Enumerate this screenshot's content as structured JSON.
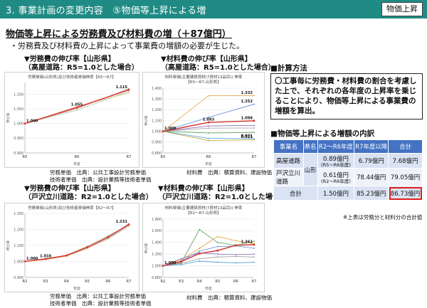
{
  "header": {
    "title": "3. 事業計画の変更内容　⑤物価等上昇による増",
    "badge": "物価上昇"
  },
  "subtitle": "物価等上昇による労務費及び材料費の増（＋87億円）",
  "lead": "・労務費及び材料費の上昇によって事業費の増額の必要が生じた。",
  "panels": {
    "tl": {
      "title1": "▼労務費の伸び率【山形県】",
      "title2": "（高屋道路：R5=1.0とした場合）",
      "source1": "労務単価　出典：公共工事設計労務単価",
      "source2": "技術者単価　出典：設計業務等技術者単価"
    },
    "tr": {
      "title1": "▼材料費の伸び率【山形県】",
      "title2": "（高屋道路：R5=1.0とした場合）",
      "source1": "材料費　出典：積算資料、建設物価"
    },
    "bl": {
      "title1": "▼労務費の伸び率【山形県】",
      "title2": "（戸沢立川道路：R2=1.0とした場合）",
      "source1": "労務単価　出典：公共工事設計労務単価",
      "source2": "技術者単価　出典：設計業務等技術者単価"
    },
    "br": {
      "title1": "▼材料費の伸び率【山形県】",
      "title2": "（戸沢立川道路：R2=1.0とした場合）",
      "source1": "材料費　出典：積算資料、建設物価"
    }
  },
  "method": {
    "heading": "■計算方法",
    "text": "〇工事毎に労務費・材料費の割合を考慮した上で、それぞれの各年度の上昇率を乗じることにより、物価等上昇による事業費の増額を算出。"
  },
  "breakdown": {
    "heading": "■物価等上昇による増額の内訳",
    "headers": [
      "事業名",
      "県名",
      "R2～R6年度",
      "R7年度以降",
      "合計"
    ],
    "rows": [
      {
        "name": "高屋道路",
        "period": "0.89億円",
        "period_note": "(R5～R6年度)",
        "later": "6.79億円",
        "total": "7.68億円"
      },
      {
        "name": "戸沢立川道路",
        "period": "0.61億円",
        "period_note": "(R2～R6年度)",
        "later": "78.44億円",
        "total": "79.05億円"
      }
    ],
    "prefecture": "山形",
    "total_row": {
      "name": "合計",
      "period": "1.50億円",
      "later": "85.23億円",
      "total": "86.73億円"
    },
    "footnote": "※上表は労務分と材料分の合計値"
  },
  "chart_data": [
    {
      "type": "line",
      "id": "labor-takaya",
      "title": "労務単価(山形県)及び技術者単価伸率【R5～R7】",
      "x": [
        "R5",
        "R6",
        "R7"
      ],
      "xlabel": "年度",
      "ylabel": "伸び率",
      "ylim": [
        0.9,
        1.14
      ],
      "yticks": [
        0.9,
        0.95,
        1.0,
        1.05,
        1.1
      ],
      "ytick_labels": [
        "0.900",
        "0.950",
        "1.000",
        "1.050",
        "1.100"
      ],
      "series": [
        {
          "name": "",
          "values": [
            1.0,
            1.051,
            1.119
          ],
          "color": "#c9a0a0"
        },
        {
          "name": "",
          "values": [
            1.0,
            1.054,
            1.117
          ],
          "color": "#a0aecf"
        },
        {
          "name": "",
          "values": [
            1.0,
            1.046,
            1.11
          ],
          "color": "#aac9a5"
        },
        {
          "name": "",
          "values": [
            1.0,
            1.058,
            1.105
          ],
          "color": "#d8c38a"
        },
        {
          "name": "",
          "values": [
            1.0,
            1.055,
            1.115
          ],
          "color": "#e0312a",
          "bold": true
        }
      ],
      "labels": [
        {
          "x": 0,
          "y": 1.0,
          "text": "1.000"
        },
        {
          "x": 1,
          "y": 1.055,
          "text": "1.055"
        },
        {
          "x": 2,
          "y": 1.115,
          "text": "1.115"
        }
      ]
    },
    {
      "type": "line",
      "id": "material-takaya",
      "title": "材料単価(主要建設資材(7資材13品目)) 伸率",
      "subtitle": "【R5～R7:山形県】",
      "x": [
        "R5",
        "R6",
        "R7"
      ],
      "xlabel": "年度",
      "ylabel": "伸び率",
      "ylim": [
        0.8,
        1.4
      ],
      "yticks": [
        0.8,
        0.9,
        1.0,
        1.1,
        1.2,
        1.3,
        1.4
      ],
      "ytick_labels": [
        "0.800",
        "0.900",
        "1.000",
        "1.100",
        "1.200",
        "1.300",
        "1.400"
      ],
      "series": [
        {
          "name": "",
          "values": [
            1.0,
            1.33,
            1.332
          ],
          "color": "#e2a23b"
        },
        {
          "name": "",
          "values": [
            1.0,
            1.13,
            1.252
          ],
          "color": "#5b8bd0"
        },
        {
          "name": "",
          "values": [
            1.0,
            1.083,
            1.098
          ],
          "color": "#d0312d",
          "bold": true
        },
        {
          "name": "",
          "values": [
            1.0,
            1.05,
            1.055
          ],
          "color": "#8a6fb8"
        },
        {
          "name": "",
          "values": [
            1.0,
            1.03,
            1.031
          ],
          "color": "#9a9a9a"
        },
        {
          "name": "",
          "values": [
            1.0,
            0.985,
            0.99
          ],
          "color": "#5aa05a"
        },
        {
          "name": "",
          "values": [
            1.0,
            0.935,
            0.931
          ],
          "color": "#3d9ad6"
        },
        {
          "name": "",
          "values": [
            1.0,
            0.915,
            0.921
          ],
          "color": "#c7a63a"
        }
      ],
      "labels": [
        {
          "x": 0,
          "y": 1.0,
          "text": "1.000"
        },
        {
          "x": 1,
          "y": 1.083,
          "text": "1.083"
        },
        {
          "x": 2,
          "y": 1.098,
          "text": "1.098"
        },
        {
          "x": 2,
          "y": 1.332,
          "text": "1.332"
        },
        {
          "x": 2,
          "y": 1.252,
          "text": "1.252"
        },
        {
          "x": 2,
          "y": 0.931,
          "text": "0.931"
        },
        {
          "x": 2,
          "y": 0.921,
          "text": "0.921"
        }
      ]
    },
    {
      "type": "line",
      "id": "labor-tozawa",
      "title": "労務単価(山形県)及び技術者単価伸率【R2～R7】",
      "x": [
        "R2",
        "R3",
        "R4",
        "R5",
        "R6",
        "R7"
      ],
      "xlabel": "年度",
      "ylabel": "伸び率",
      "ylim": [
        0.9,
        1.3
      ],
      "yticks": [
        0.9,
        1.0,
        1.1,
        1.2,
        1.3
      ],
      "ytick_labels": [
        "0.900",
        "1.000",
        "1.100",
        "1.200",
        "1.300"
      ],
      "series": [
        {
          "name": "",
          "values": [
            1.0,
            1.015,
            1.04,
            1.09,
            1.15,
            1.235
          ],
          "color": "#c9a0a0"
        },
        {
          "name": "",
          "values": [
            1.0,
            1.012,
            1.035,
            1.085,
            1.145,
            1.225
          ],
          "color": "#a0aecf"
        },
        {
          "name": "",
          "values": [
            1.0,
            1.018,
            1.038,
            1.095,
            1.16,
            1.228
          ],
          "color": "#aac9a5"
        },
        {
          "name": "",
          "values": [
            1.0,
            1.01,
            1.032,
            1.08,
            1.14,
            1.22
          ],
          "color": "#d8c38a"
        },
        {
          "name": "",
          "values": [
            1.0,
            1.016,
            1.037,
            1.088,
            1.152,
            1.231
          ],
          "color": "#e0312a",
          "bold": true
        }
      ],
      "labels": [
        {
          "x": 0,
          "y": 1.0,
          "text": "1.000"
        },
        {
          "x": 1,
          "y": 1.016,
          "text": "1.016"
        },
        {
          "x": 5,
          "y": 1.231,
          "text": "1.231"
        }
      ]
    },
    {
      "type": "line",
      "id": "material-tozawa",
      "title": "材料単価(主要建設資材(7資材13品目)) 伸率",
      "subtitle": "【R2～R7:山形県】",
      "x": [
        "R2",
        "R3",
        "R4",
        "R5",
        "R6",
        "R7"
      ],
      "xlabel": "年度",
      "ylabel": "伸び率",
      "ylim": [
        0.8,
        1.8
      ],
      "yticks": [
        0.8,
        1.0,
        1.2,
        1.4,
        1.6,
        1.8
      ],
      "ytick_labels": [
        "0.800",
        "1.000",
        "1.200",
        "1.400",
        "1.600",
        "1.800"
      ],
      "series": [
        {
          "name": "",
          "values": [
            1.0,
            1.05,
            1.62,
            1.4,
            1.35,
            1.42
          ],
          "color": "#5aa05a"
        },
        {
          "name": "",
          "values": [
            1.0,
            1.1,
            1.3,
            1.5,
            1.43,
            1.38
          ],
          "color": "#e2a23b"
        },
        {
          "name": "",
          "values": [
            1.0,
            1.08,
            1.25,
            1.33,
            1.34,
            1.3
          ],
          "color": "#5b8bd0"
        },
        {
          "name": "",
          "values": [
            1.0,
            1.12,
            1.22,
            1.2,
            1.19,
            1.2
          ],
          "color": "#8a6fb8"
        },
        {
          "name": "",
          "values": [
            1.0,
            1.04,
            1.12,
            1.15,
            1.16,
            1.15
          ],
          "color": "#9a9a9a"
        },
        {
          "name": "",
          "values": [
            1.0,
            1.02,
            1.08,
            1.06,
            1.05,
            1.06
          ],
          "color": "#3d9ad6"
        },
        {
          "name": "",
          "values": [
            1.0,
            1.07,
            1.21,
            1.261,
            1.351,
            1.361
          ],
          "color": "#d0312d",
          "bold": true
        }
      ],
      "labels": [
        {
          "x": 0,
          "y": 1.0,
          "text": "1.000"
        },
        {
          "x": 5,
          "y": 1.361,
          "text": "1.361"
        }
      ]
    }
  ]
}
